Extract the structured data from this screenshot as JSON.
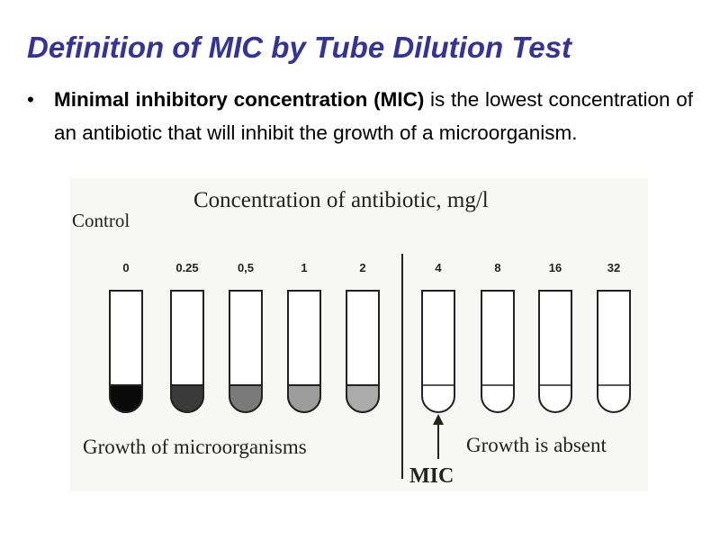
{
  "title": "Definition of MIC by Tube Dilution Test",
  "bullet": {
    "term": "Minimal inhibitory concentration (MIC)",
    "text": " is the lowest concentration of an antibiotic that will inhibit the growth of a microorganism."
  },
  "figure": {
    "heading": "Concentration of antibiotic, mg/l",
    "control": "Control",
    "tubes": [
      "0",
      "0.25",
      "0,5",
      "1",
      "2",
      "4",
      "8",
      "16",
      "32"
    ],
    "growth": "Growth of microorganisms",
    "absent": "Growth is absent",
    "mic": "MIC"
  }
}
